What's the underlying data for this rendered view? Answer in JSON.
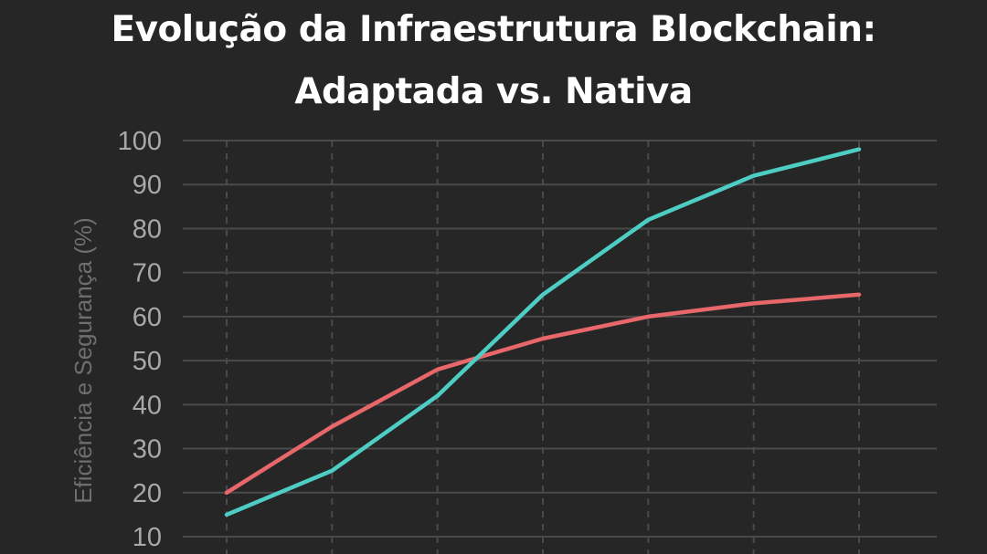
{
  "chart_data": {
    "type": "line",
    "title": [
      "Evolução da Infraestrutura Blockchain:",
      "Adaptada vs. Nativa"
    ],
    "xlabel": "",
    "ylabel": "Eficiência e Segurança (%)",
    "ylim": [
      10,
      100
    ],
    "yticks": [
      10,
      20,
      30,
      40,
      50,
      60,
      70,
      80,
      90,
      100
    ],
    "x_count": 7,
    "grid": {
      "horizontal": "solid",
      "vertical": "dashed"
    },
    "series": [
      {
        "color": "#e8676a",
        "values": [
          20,
          35,
          48,
          55,
          60,
          63,
          65
        ]
      },
      {
        "color": "#4ecdc4",
        "values": [
          15,
          25,
          42,
          65,
          82,
          92,
          98
        ]
      }
    ]
  },
  "colors": {
    "background": "#262626",
    "grid": "#4a4a4a",
    "title": "#ffffff",
    "tick_label": "#a8a8a8",
    "axis_label": "#6e6e6e"
  }
}
